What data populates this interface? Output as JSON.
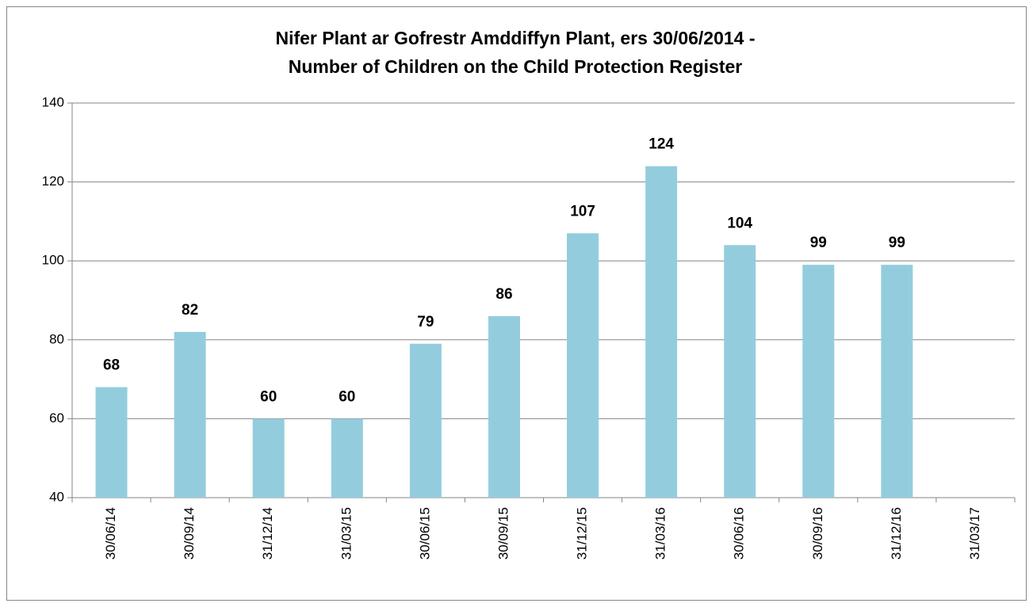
{
  "chart_data": {
    "type": "bar",
    "title": [
      "Nifer Plant ar Gofrestr Amddiffyn Plant, ers 30/06/2014 -",
      "Number of Children on the Child Protection Register"
    ],
    "categories": [
      "30/06/14",
      "30/09/14",
      "31/12/14",
      "31/03/15",
      "30/06/15",
      "30/09/15",
      "31/12/15",
      "31/03/16",
      "30/06/16",
      "30/09/16",
      "31/12/16",
      "31/03/17"
    ],
    "values": [
      68,
      82,
      60,
      60,
      79,
      86,
      107,
      124,
      104,
      99,
      99,
      null
    ],
    "color": "#93cddd",
    "ylim": [
      40,
      140
    ],
    "yticks": [
      40,
      60,
      80,
      100,
      120,
      140
    ],
    "grid": true
  }
}
